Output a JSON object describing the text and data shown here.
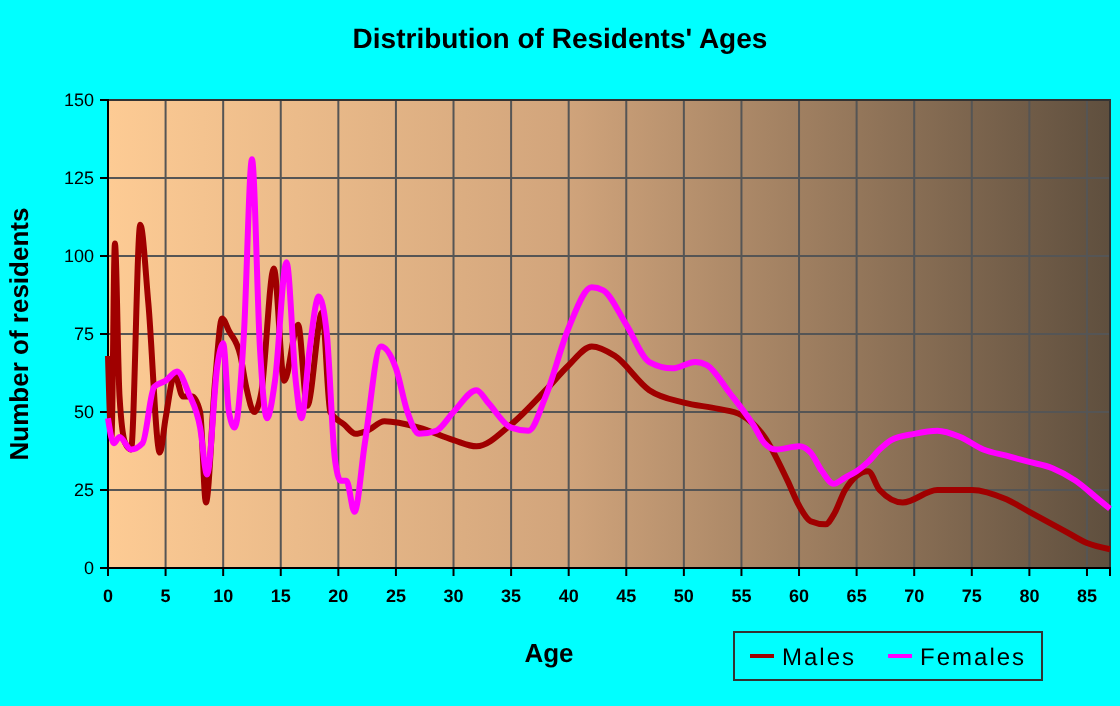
{
  "chart_data": {
    "type": "line",
    "title": "Distribution of Residents' Ages",
    "xlabel": "Age",
    "ylabel": "Number of residents",
    "xlim": [
      0,
      87
    ],
    "xticks": [
      0,
      5,
      10,
      15,
      20,
      25,
      30,
      35,
      40,
      45,
      50,
      55,
      60,
      65,
      70,
      75,
      80,
      85
    ],
    "ylim": [
      0,
      150
    ],
    "yticks": [
      0,
      25,
      50,
      75,
      100,
      125,
      150
    ],
    "grid": true,
    "legend": "bottom right",
    "series": [
      {
        "name": "Males",
        "color": "#a00000",
        "x": [
          0,
          0.3,
          0.6,
          1,
          1.5,
          2,
          2.8,
          3.5,
          4.5,
          5,
          5.8,
          6.5,
          7.3,
          8,
          8.5,
          9.3,
          9.9,
          10.5,
          11.5,
          12,
          12.7,
          13.3,
          14.4,
          15.3,
          16.5,
          17.3,
          18.6,
          19.3,
          20.5,
          21.5,
          22.5,
          24,
          27,
          30,
          32,
          35,
          38,
          40,
          42,
          44,
          47,
          50,
          53,
          55,
          57,
          59,
          60,
          61,
          62.3,
          63,
          64,
          66,
          67,
          69,
          72,
          75,
          78,
          80,
          83,
          85,
          87
        ],
        "values": [
          68,
          42,
          104,
          55,
          40,
          38,
          110,
          85,
          37,
          48,
          62,
          55,
          55,
          50,
          21,
          60,
          80,
          76,
          68,
          58,
          50,
          56,
          96,
          60,
          78,
          52,
          82,
          50,
          46,
          43,
          44,
          47,
          45,
          41,
          39,
          46,
          57,
          65,
          71,
          68,
          57,
          53,
          51,
          49,
          42,
          28,
          20,
          15,
          14,
          17,
          25,
          31,
          25,
          21,
          25,
          25,
          22,
          18,
          12,
          8,
          6
        ]
      },
      {
        "name": "Females",
        "color": "#ff00ff",
        "x": [
          0,
          0.5,
          1,
          2,
          3,
          4,
          5,
          6,
          7,
          8,
          8.6,
          9.5,
          10,
          10.5,
          11,
          11.8,
          12.5,
          13.2,
          13.8,
          14.5,
          15.5,
          16.3,
          16.8,
          17.5,
          18.3,
          19,
          19.7,
          20.2,
          20.7,
          21.4,
          22.3,
          23.7,
          25,
          26,
          27,
          28.5,
          30,
          32,
          33,
          35,
          36.5,
          38,
          40,
          42,
          43,
          45,
          47,
          49,
          51,
          52,
          54,
          56,
          57,
          58,
          60,
          61,
          62,
          63,
          64,
          65,
          66,
          67,
          68,
          70,
          72,
          74,
          76,
          78,
          80,
          82,
          84,
          86,
          87
        ],
        "values": [
          48,
          40,
          42,
          38,
          40,
          58,
          60,
          63,
          56,
          45,
          30,
          65,
          72,
          50,
          45,
          75,
          131,
          70,
          48,
          60,
          98,
          60,
          48,
          70,
          87,
          75,
          35,
          28,
          28,
          18,
          40,
          71,
          64,
          50,
          43,
          44,
          50,
          57,
          53,
          45,
          44,
          55,
          77,
          90,
          89,
          78,
          66,
          64,
          66,
          65,
          56,
          46,
          40,
          38,
          39,
          37,
          31,
          27,
          29,
          31,
          34,
          38,
          41,
          43,
          44,
          42,
          38,
          36,
          34,
          32,
          28,
          22,
          19
        ]
      }
    ]
  }
}
